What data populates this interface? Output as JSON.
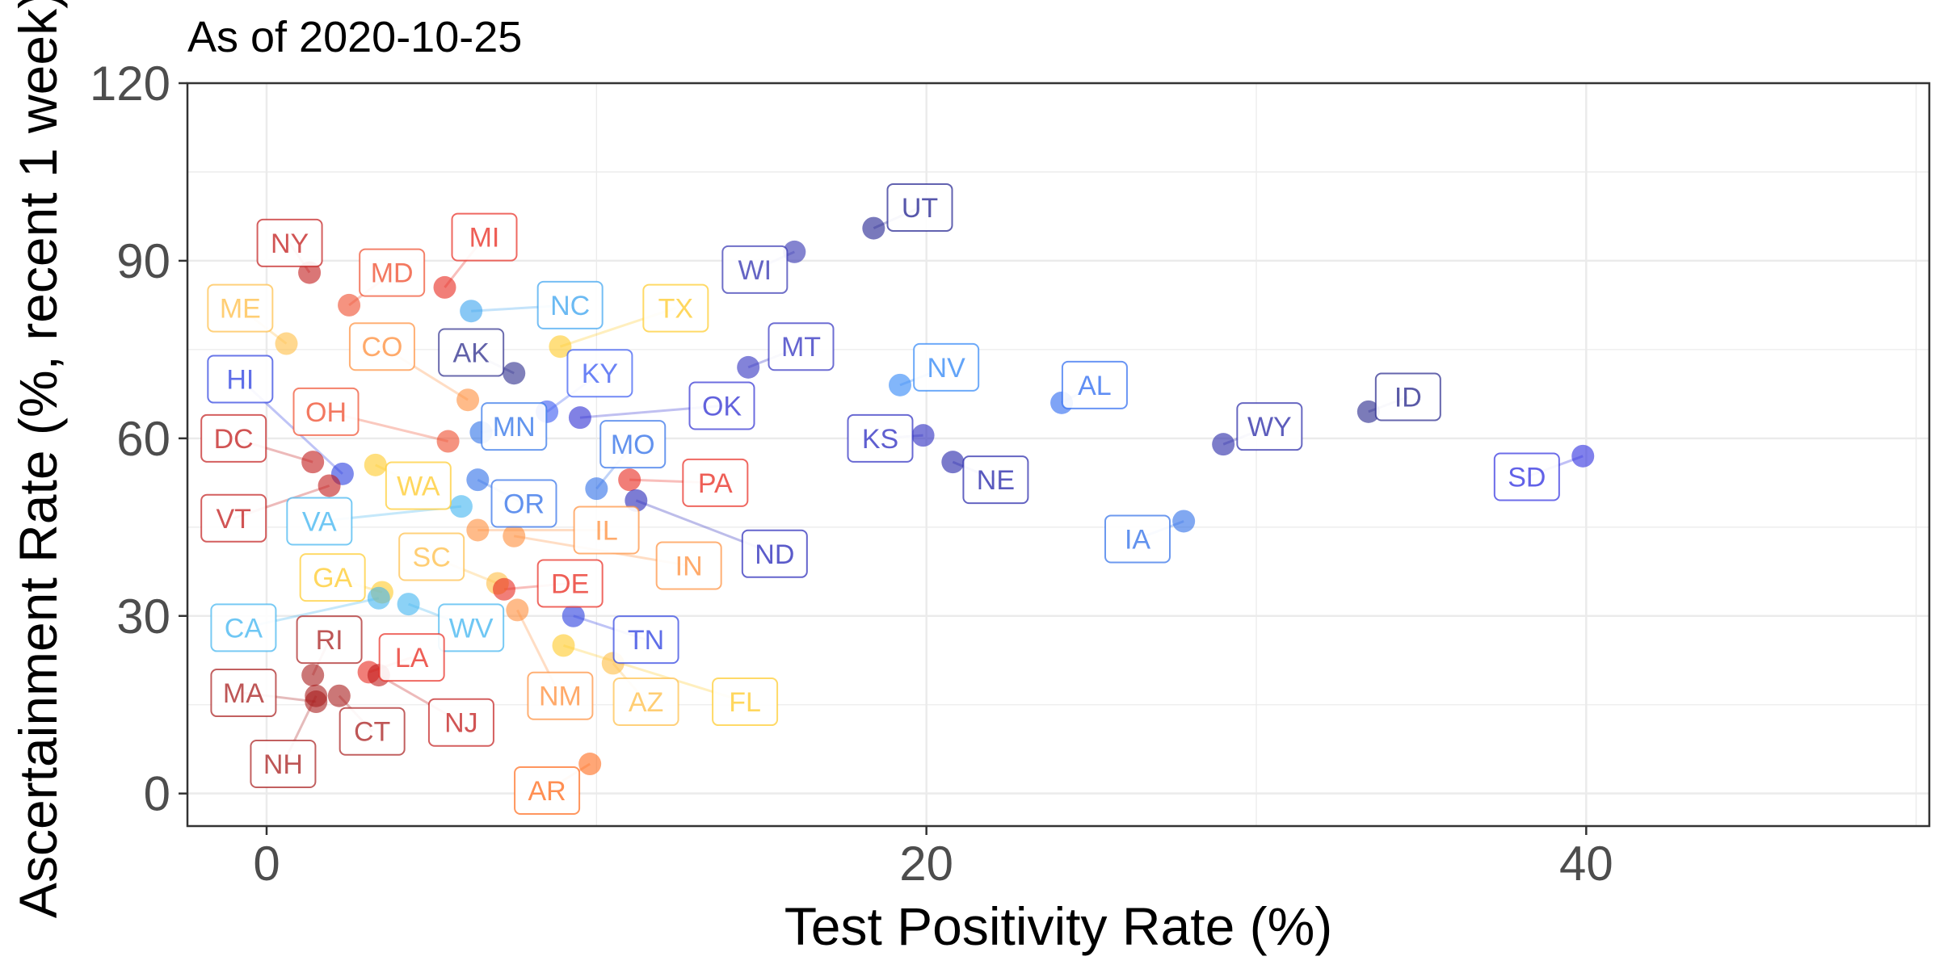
{
  "chart_data": {
    "type": "scatter",
    "title": "As of 2020-10-25",
    "xlabel": "Test Positivity Rate (%)",
    "ylabel": "Ascertainment Rate (%, recent 1 week)",
    "xlim": [
      -2.4,
      50.4
    ],
    "ylim": [
      -5.5,
      120
    ],
    "xticks": [
      0,
      20,
      40
    ],
    "yticks": [
      0,
      30,
      60,
      90,
      120
    ],
    "grid": true,
    "legend": "none",
    "points": [
      {
        "label": "NY",
        "x": 1.3,
        "y": 88,
        "lx": 0.7,
        "ly": 93,
        "color": "#c21b1b"
      },
      {
        "label": "MI",
        "x": 5.4,
        "y": 85.5,
        "lx": 6.6,
        "ly": 94,
        "color": "#e8281e"
      },
      {
        "label": "MD",
        "x": 2.5,
        "y": 82.5,
        "lx": 3.8,
        "ly": 88,
        "color": "#ef4b2b"
      },
      {
        "label": "ME",
        "x": 0.6,
        "y": 76,
        "lx": -0.8,
        "ly": 82,
        "color": "#ffbe45"
      },
      {
        "label": "NC",
        "x": 6.2,
        "y": 81.5,
        "lx": 9.2,
        "ly": 82.5,
        "color": "#3aa3ef"
      },
      {
        "label": "TX",
        "x": 8.9,
        "y": 75.5,
        "lx": 12.4,
        "ly": 82,
        "color": "#ffca28"
      },
      {
        "label": "UT",
        "x": 18.4,
        "y": 95.5,
        "lx": 19.8,
        "ly": 99,
        "color": "#1f1f8f"
      },
      {
        "label": "WI",
        "x": 16.0,
        "y": 91.5,
        "lx": 14.8,
        "ly": 88.5,
        "color": "#3232b0"
      },
      {
        "label": "CO",
        "x": 6.1,
        "y": 66.5,
        "lx": 3.5,
        "ly": 75.5,
        "color": "#ff8e3a"
      },
      {
        "label": "AK",
        "x": 7.5,
        "y": 71,
        "lx": 6.2,
        "ly": 74.5,
        "color": "#2c2c8c"
      },
      {
        "label": "MT",
        "x": 14.6,
        "y": 72,
        "lx": 16.2,
        "ly": 75.5,
        "color": "#3030c0"
      },
      {
        "label": "NV",
        "x": 19.2,
        "y": 69,
        "lx": 20.6,
        "ly": 72,
        "color": "#2f86f6"
      },
      {
        "label": "KY",
        "x": 8.5,
        "y": 64.5,
        "lx": 10.1,
        "ly": 71,
        "color": "#3858f2"
      },
      {
        "label": "HI",
        "x": 2.3,
        "y": 54,
        "lx": -0.8,
        "ly": 70,
        "color": "#2a3de0"
      },
      {
        "label": "OK",
        "x": 9.5,
        "y": 63.5,
        "lx": 13.8,
        "ly": 65.5,
        "color": "#2d2dd2"
      },
      {
        "label": "AL",
        "x": 24.1,
        "y": 66,
        "lx": 25.1,
        "ly": 69,
        "color": "#2968f0"
      },
      {
        "label": "ID",
        "x": 33.4,
        "y": 64.5,
        "lx": 34.6,
        "ly": 67,
        "color": "#23238a"
      },
      {
        "label": "OH",
        "x": 5.5,
        "y": 59.5,
        "lx": 1.8,
        "ly": 64.5,
        "color": "#ef4b2b"
      },
      {
        "label": "MN",
        "x": 6.5,
        "y": 61,
        "lx": 7.5,
        "ly": 62,
        "color": "#2d72e8"
      },
      {
        "label": "WY",
        "x": 29.0,
        "y": 59,
        "lx": 30.4,
        "ly": 62,
        "color": "#2727a6"
      },
      {
        "label": "KS",
        "x": 19.9,
        "y": 60.5,
        "lx": 18.6,
        "ly": 60,
        "color": "#2a2ac0"
      },
      {
        "label": "MO",
        "x": 10.0,
        "y": 51.5,
        "lx": 11.1,
        "ly": 59,
        "color": "#2d6ee8"
      },
      {
        "label": "DC",
        "x": 1.4,
        "y": 56,
        "lx": -1.0,
        "ly": 60,
        "color": "#c21b1b"
      },
      {
        "label": "NE",
        "x": 20.8,
        "y": 56,
        "lx": 22.1,
        "ly": 53,
        "color": "#2222a8"
      },
      {
        "label": "SD",
        "x": 39.9,
        "y": 57,
        "lx": 38.2,
        "ly": 53.5,
        "color": "#2d2de0"
      },
      {
        "label": "WA",
        "x": 3.3,
        "y": 55.5,
        "lx": 4.6,
        "ly": 52,
        "color": "#ffca28"
      },
      {
        "label": "PA",
        "x": 11.0,
        "y": 53,
        "lx": 13.6,
        "ly": 52.5,
        "color": "#e8281e"
      },
      {
        "label": "OR",
        "x": 6.4,
        "y": 53,
        "lx": 7.8,
        "ly": 49,
        "color": "#2d6ee8"
      },
      {
        "label": "VT",
        "x": 1.9,
        "y": 52,
        "lx": -1.0,
        "ly": 46.5,
        "color": "#c21b1b"
      },
      {
        "label": "VA",
        "x": 5.9,
        "y": 48.5,
        "lx": 1.6,
        "ly": 46,
        "color": "#3fb4f0"
      },
      {
        "label": "IL",
        "x": 6.4,
        "y": 44.5,
        "lx": 10.3,
        "ly": 44.5,
        "color": "#ff8e3a"
      },
      {
        "label": "ND",
        "x": 11.2,
        "y": 49.5,
        "lx": 15.4,
        "ly": 40.5,
        "color": "#2424b8"
      },
      {
        "label": "IA",
        "x": 27.8,
        "y": 46,
        "lx": 26.4,
        "ly": 43,
        "color": "#2d6ee8"
      },
      {
        "label": "SC",
        "x": 7.0,
        "y": 35.5,
        "lx": 5.0,
        "ly": 40,
        "color": "#ffbe45"
      },
      {
        "label": "IN",
        "x": 7.5,
        "y": 43.5,
        "lx": 12.8,
        "ly": 38.5,
        "color": "#ff8e3a"
      },
      {
        "label": "GA",
        "x": 3.5,
        "y": 34,
        "lx": 2.0,
        "ly": 36.5,
        "color": "#ffca28"
      },
      {
        "label": "DE",
        "x": 7.2,
        "y": 34.5,
        "lx": 9.2,
        "ly": 35.5,
        "color": "#e8281e"
      },
      {
        "label": "CA",
        "x": 3.4,
        "y": 33,
        "lx": -0.7,
        "ly": 28,
        "color": "#3fb4f0"
      },
      {
        "label": "WV",
        "x": 4.3,
        "y": 32,
        "lx": 6.2,
        "ly": 28,
        "color": "#3fb4f0"
      },
      {
        "label": "TN",
        "x": 9.3,
        "y": 30,
        "lx": 11.5,
        "ly": 26,
        "color": "#2a3de0"
      },
      {
        "label": "RI",
        "x": 1.4,
        "y": 20,
        "lx": 1.9,
        "ly": 26,
        "color": "#a81d1d"
      },
      {
        "label": "LA",
        "x": 3.1,
        "y": 20.5,
        "lx": 4.4,
        "ly": 23,
        "color": "#e8281e"
      },
      {
        "label": "MA",
        "x": 1.5,
        "y": 15.5,
        "lx": -0.7,
        "ly": 17,
        "color": "#a81d1d"
      },
      {
        "label": "NM",
        "x": 7.6,
        "y": 31,
        "lx": 8.9,
        "ly": 16.5,
        "color": "#ff8e3a"
      },
      {
        "label": "AZ",
        "x": 10.5,
        "y": 22,
        "lx": 11.5,
        "ly": 15.5,
        "color": "#ffbe45"
      },
      {
        "label": "FL",
        "x": 9.0,
        "y": 25,
        "lx": 14.5,
        "ly": 15.5,
        "color": "#ffca28"
      },
      {
        "label": "CT",
        "x": 2.2,
        "y": 16.5,
        "lx": 3.2,
        "ly": 10.5,
        "color": "#a81d1d"
      },
      {
        "label": "NJ",
        "x": 3.4,
        "y": 20,
        "lx": 5.9,
        "ly": 12,
        "color": "#c21b1b"
      },
      {
        "label": "NH",
        "x": 1.5,
        "y": 16.5,
        "lx": 0.5,
        "ly": 5,
        "color": "#a81d1d"
      },
      {
        "label": "AR",
        "x": 9.8,
        "y": 5,
        "lx": 8.5,
        "ly": 0.5,
        "color": "#ff6a1a"
      }
    ]
  }
}
